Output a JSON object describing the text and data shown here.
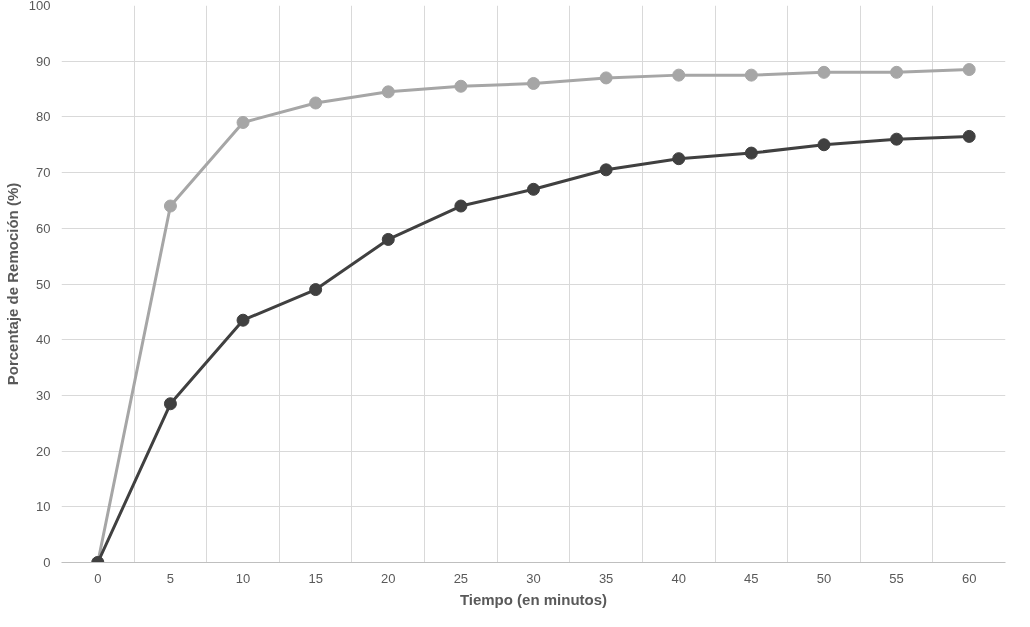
{
  "chart_data": {
    "type": "line",
    "xlabel": "Tiempo (en minutos)",
    "ylabel": "Porcentaje de Remoción (%)",
    "categories": [
      "0",
      "5",
      "10",
      "15",
      "20",
      "25",
      "30",
      "35",
      "40",
      "45",
      "50",
      "55",
      "60"
    ],
    "series": [
      {
        "color": "#a6a6a6",
        "values": [
          0,
          64,
          79,
          82.5,
          84.5,
          85.5,
          86,
          87,
          87.5,
          87.5,
          88,
          88,
          88.5
        ]
      },
      {
        "color": "#404040",
        "values": [
          0,
          28.5,
          43.5,
          49,
          58,
          64,
          67,
          70.5,
          72.5,
          73.5,
          75,
          76,
          76.5
        ]
      }
    ],
    "ylim": [
      0,
      100
    ],
    "yticks": [
      0,
      10,
      20,
      30,
      40,
      50,
      60,
      70,
      80,
      90,
      100
    ],
    "grid": true,
    "marker": "circle",
    "line_style": "solid"
  }
}
